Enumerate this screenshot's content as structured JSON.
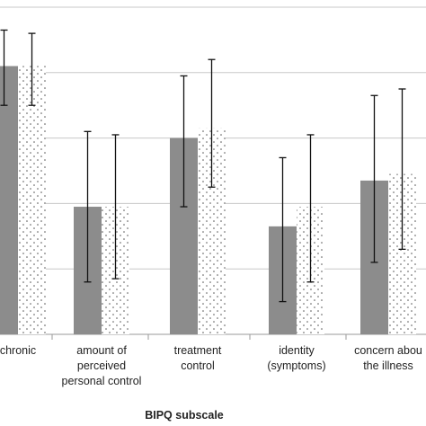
{
  "chart_data": {
    "type": "bar",
    "xlabel": "BIPQ subscale",
    "ylabel": "",
    "ylim": [
      0,
      10
    ],
    "y_gridlines": [
      2,
      4,
      6,
      8,
      10
    ],
    "grid": true,
    "categories": [
      [
        "chronic"
      ],
      [
        "amount of",
        "perceived",
        "personal control"
      ],
      [
        "treatment",
        "control"
      ],
      [
        "identity",
        "(symptoms)"
      ],
      [
        "concern abou",
        "the illness"
      ]
    ],
    "series": [
      {
        "style": "solid",
        "color": "#8c8c8c",
        "values": [
          8.2,
          3.9,
          6.0,
          3.3,
          4.7
        ],
        "error_low": [
          7.0,
          1.6,
          3.9,
          1.0,
          2.2
        ],
        "error_high": [
          9.3,
          6.2,
          7.9,
          5.4,
          7.3
        ]
      },
      {
        "style": "dotted",
        "color": "#ffffff",
        "values": [
          8.2,
          3.9,
          6.3,
          3.9,
          4.9
        ],
        "error_low": [
          7.0,
          1.7,
          4.5,
          1.6,
          2.6
        ],
        "error_high": [
          9.2,
          6.1,
          8.4,
          6.1,
          7.5
        ]
      }
    ]
  }
}
